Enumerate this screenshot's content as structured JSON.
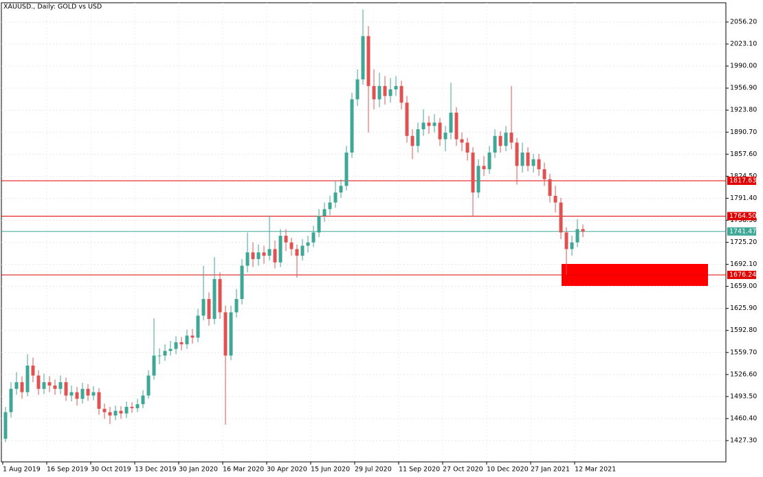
{
  "chart_data": {
    "type": "candlestick",
    "title": "XAUUSD., Daily:  GOLD vs USD",
    "up_color": "#3fa796",
    "down_color": "#e05252",
    "grid": true,
    "categories": [
      "1 Aug 2019",
      null,
      null,
      null,
      null,
      null,
      null,
      null,
      "16 Sep 2019",
      null,
      null,
      null,
      null,
      null,
      null,
      null,
      "30 Oct 2019",
      null,
      null,
      null,
      null,
      null,
      null,
      null,
      "13 Dec 2019",
      null,
      null,
      null,
      null,
      null,
      null,
      null,
      "30 Jan 2020",
      null,
      null,
      null,
      null,
      null,
      null,
      null,
      "16 Mar 2020",
      null,
      null,
      null,
      null,
      null,
      null,
      null,
      "30 Apr 2020",
      null,
      null,
      null,
      null,
      null,
      null,
      null,
      "15 Jun 2020",
      null,
      null,
      null,
      null,
      null,
      null,
      null,
      "29 Jul 2020",
      null,
      null,
      null,
      null,
      null,
      null,
      null,
      "11 Sep 2020",
      null,
      null,
      null,
      null,
      null,
      null,
      null,
      "27 Oct 2020",
      null,
      null,
      null,
      null,
      null,
      null,
      null,
      "10 Dec 2020",
      null,
      null,
      null,
      null,
      null,
      null,
      null,
      "27 Jan 2021",
      null,
      null,
      null,
      null,
      null,
      null,
      null,
      "12 Mar 2021",
      null
    ],
    "open": [
      1430,
      1470,
      1505,
      1515,
      1500,
      1540,
      1525,
      1505,
      1515,
      1510,
      1505,
      1515,
      1495,
      1500,
      1490,
      1505,
      1495,
      1500,
      1475,
      1470,
      1465,
      1472,
      1468,
      1478,
      1476,
      1482,
      1495,
      1525,
      1555,
      1555,
      1562,
      1565,
      1575,
      1572,
      1585,
      1582,
      1615,
      1640,
      1610,
      1670,
      1620,
      1555,
      1620,
      1640,
      1690,
      1710,
      1700,
      1710,
      1705,
      1715,
      1695,
      1735,
      1725,
      1715,
      1705,
      1720,
      1725,
      1740,
      1765,
      1775,
      1785,
      1800,
      1810,
      1860,
      1940,
      1970,
      2035,
      1960,
      1940,
      1960,
      1945,
      1955,
      1960,
      1935,
      1885,
      1870,
      1895,
      1905,
      1900,
      1905,
      1880,
      1890,
      1920,
      1880,
      1875,
      1860,
      1800,
      1840,
      1835,
      1860,
      1885,
      1870,
      1890,
      1875,
      1840,
      1860,
      1840,
      1850,
      1835,
      1820,
      1795,
      1785,
      1740,
      1715,
      1725,
      1745
    ],
    "high": [
      1478,
      1515,
      1530,
      1524,
      1557,
      1552,
      1533,
      1528,
      1524,
      1519,
      1525,
      1522,
      1510,
      1508,
      1514,
      1512,
      1509,
      1506,
      1483,
      1478,
      1480,
      1479,
      1486,
      1485,
      1490,
      1503,
      1533,
      1611,
      1566,
      1572,
      1577,
      1584,
      1583,
      1594,
      1595,
      1625,
      1690,
      1650,
      1703,
      1680,
      1630,
      1630,
      1655,
      1700,
      1740,
      1725,
      1722,
      1720,
      1765,
      1728,
      1745,
      1745,
      1732,
      1722,
      1730,
      1735,
      1750,
      1775,
      1785,
      1795,
      1818,
      1820,
      1870,
      1950,
      1985,
      2075,
      2050,
      1985,
      1980,
      1975,
      1972,
      1975,
      1968,
      1945,
      1895,
      1905,
      1925,
      1915,
      1918,
      1912,
      1900,
      1965,
      1928,
      1890,
      1882,
      1868,
      1850,
      1855,
      1870,
      1895,
      1892,
      1900,
      1960,
      1882,
      1875,
      1868,
      1858,
      1858,
      1845,
      1828,
      1810,
      1792,
      1748,
      1735,
      1760,
      1752
    ],
    "low": [
      1425,
      1462,
      1496,
      1490,
      1494,
      1515,
      1496,
      1497,
      1500,
      1496,
      1497,
      1487,
      1486,
      1480,
      1483,
      1487,
      1488,
      1466,
      1460,
      1452,
      1458,
      1460,
      1461,
      1469,
      1470,
      1476,
      1490,
      1519,
      1542,
      1547,
      1555,
      1557,
      1563,
      1565,
      1573,
      1575,
      1608,
      1600,
      1602,
      1610,
      1451,
      1548,
      1612,
      1632,
      1680,
      1688,
      1690,
      1693,
      1698,
      1686,
      1688,
      1712,
      1705,
      1672,
      1698,
      1710,
      1718,
      1733,
      1756,
      1766,
      1777,
      1792,
      1803,
      1852,
      1930,
      1962,
      1890,
      1925,
      1928,
      1932,
      1935,
      1945,
      1925,
      1875,
      1850,
      1860,
      1885,
      1888,
      1890,
      1870,
      1862,
      1880,
      1870,
      1862,
      1848,
      1765,
      1792,
      1825,
      1828,
      1852,
      1860,
      1862,
      1865,
      1812,
      1830,
      1832,
      1830,
      1825,
      1810,
      1785,
      1770,
      1730,
      1676,
      1705,
      1718,
      1733
    ],
    "close": [
      1470,
      1505,
      1515,
      1500,
      1540,
      1525,
      1505,
      1515,
      1510,
      1505,
      1515,
      1495,
      1500,
      1490,
      1505,
      1495,
      1500,
      1475,
      1470,
      1465,
      1472,
      1468,
      1478,
      1476,
      1482,
      1495,
      1525,
      1555,
      1555,
      1562,
      1565,
      1575,
      1572,
      1585,
      1582,
      1615,
      1640,
      1610,
      1670,
      1620,
      1555,
      1620,
      1640,
      1690,
      1710,
      1700,
      1710,
      1705,
      1715,
      1695,
      1735,
      1725,
      1715,
      1705,
      1720,
      1725,
      1740,
      1765,
      1775,
      1785,
      1800,
      1810,
      1860,
      1940,
      1970,
      2035,
      1960,
      1940,
      1960,
      1945,
      1955,
      1960,
      1935,
      1885,
      1870,
      1895,
      1905,
      1900,
      1905,
      1880,
      1890,
      1920,
      1880,
      1875,
      1860,
      1800,
      1840,
      1835,
      1860,
      1885,
      1870,
      1890,
      1875,
      1840,
      1860,
      1840,
      1850,
      1835,
      1820,
      1795,
      1785,
      1740,
      1715,
      1725,
      1745,
      1741.47
    ],
    "ylim": [
      1395.3,
      2085.1
    ],
    "yticks": [
      {
        "value": 1427.3,
        "label": "1427.30"
      },
      {
        "value": 1460.4,
        "label": "1460.40"
      },
      {
        "value": 1493.5,
        "label": "1493.50"
      },
      {
        "value": 1526.6,
        "label": "1526.60"
      },
      {
        "value": 1559.7,
        "label": "1559.70"
      },
      {
        "value": 1592.8,
        "label": "1592.80"
      },
      {
        "value": 1625.9,
        "label": "1625.90"
      },
      {
        "value": 1659,
        "label": "1659.00"
      },
      {
        "value": 1692.1,
        "label": "1692.10"
      },
      {
        "value": 1725.2,
        "label": "1725.20"
      },
      {
        "value": 1758.3,
        "label": "1758.30"
      },
      {
        "value": 1791.4,
        "label": "1791.40"
      },
      {
        "value": 1824.5,
        "label": "1824.50"
      },
      {
        "value": 1857.6,
        "label": "1857.60"
      },
      {
        "value": 1890.7,
        "label": "1890.70"
      },
      {
        "value": 1923.8,
        "label": "1923.80"
      },
      {
        "value": 1956.9,
        "label": "1956.90"
      },
      {
        "value": 1990,
        "label": "1990.00"
      },
      {
        "value": 2023.1,
        "label": "2023.10"
      },
      {
        "value": 2056.2,
        "label": "2056.20"
      }
    ],
    "levels": [
      {
        "value": 1817.63,
        "label": "1817.63",
        "color": "#e00000"
      },
      {
        "value": 1764.5,
        "label": "1764.50",
        "color": "#e00000"
      },
      {
        "value": 1741.47,
        "label": "1741.47",
        "color": "#3fa796"
      },
      {
        "value": 1676.24,
        "label": "1676.24",
        "color": "#e00000"
      }
    ],
    "zone": {
      "high": 1692.7,
      "low": 1659.6,
      "color": "#ff0000"
    }
  }
}
